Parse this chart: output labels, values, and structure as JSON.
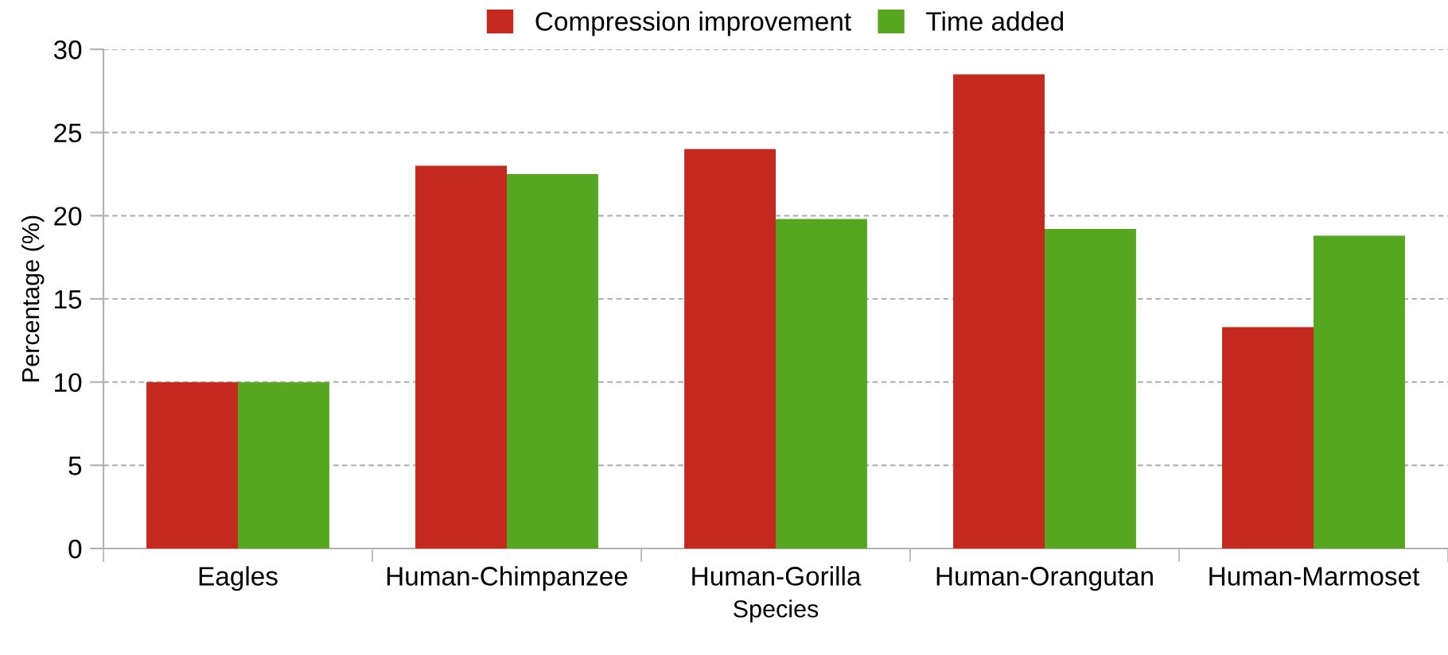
{
  "chart_data": {
    "type": "bar",
    "xlabel": "Species",
    "ylabel": "Percentage (%)",
    "categories": [
      "Eagles",
      "Human-Chimpanzee",
      "Human-Gorilla",
      "Human-Orangutan",
      "Human-Marmoset"
    ],
    "series": [
      {
        "name": "Compression improvement",
        "color": "#c5281c",
        "values": [
          10,
          23,
          24,
          28.5,
          13.3
        ]
      },
      {
        "name": "Time added",
        "color": "#57a61f",
        "values": [
          10,
          22.5,
          19.8,
          19.2,
          18.8
        ]
      }
    ],
    "ylim": [
      0,
      30
    ],
    "yticks": [
      0,
      5,
      10,
      15,
      20,
      25,
      30
    ],
    "grid": "y",
    "legend": "top"
  }
}
